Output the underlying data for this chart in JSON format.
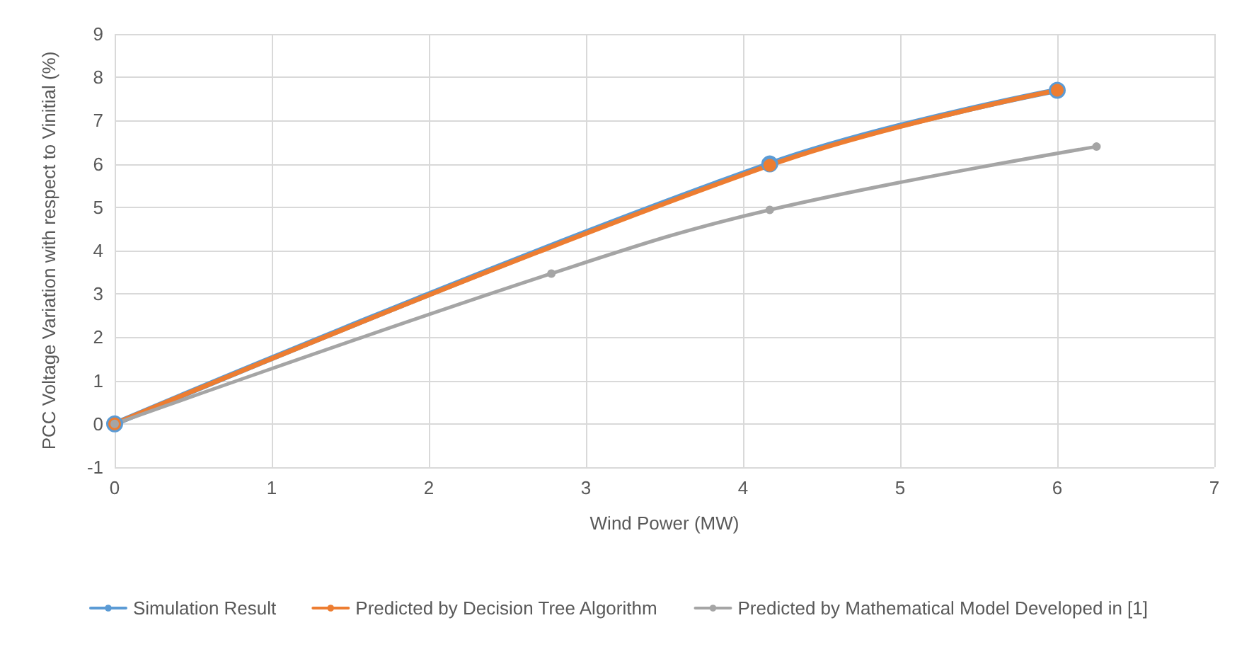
{
  "chart_data": {
    "type": "line",
    "xlabel": "Wind Power (MW)",
    "ylabel": "PCC Voltage Variation with respect to Vinitial (%)",
    "series": [
      {
        "name": "Simulation Result",
        "color": "#5b9bd5",
        "x": [
          0,
          4.17,
          6
        ],
        "values": [
          0,
          6.0,
          7.7
        ]
      },
      {
        "name": "Predicted by Decision Tree Algorithm",
        "color": "#ed7d31",
        "x": [
          0,
          4.17,
          6
        ],
        "values": [
          0,
          5.97,
          7.7
        ]
      },
      {
        "name": "Predicted by Mathematical Model Developed in [1]",
        "color": "#a5a5a5",
        "x": [
          0,
          2.78,
          4.17,
          6.25
        ],
        "values": [
          0,
          3.47,
          4.94,
          6.4
        ]
      }
    ],
    "xlim": [
      0,
      7
    ],
    "xticks": [
      0,
      1,
      2,
      3,
      4,
      5,
      6,
      7
    ],
    "ylim": [
      -1,
      9
    ],
    "yticks": [
      -1,
      0,
      1,
      2,
      3,
      4,
      5,
      6,
      7,
      8,
      9
    ],
    "grid": true,
    "legend": "bottom",
    "marker": "circle",
    "line_style": "solid"
  }
}
